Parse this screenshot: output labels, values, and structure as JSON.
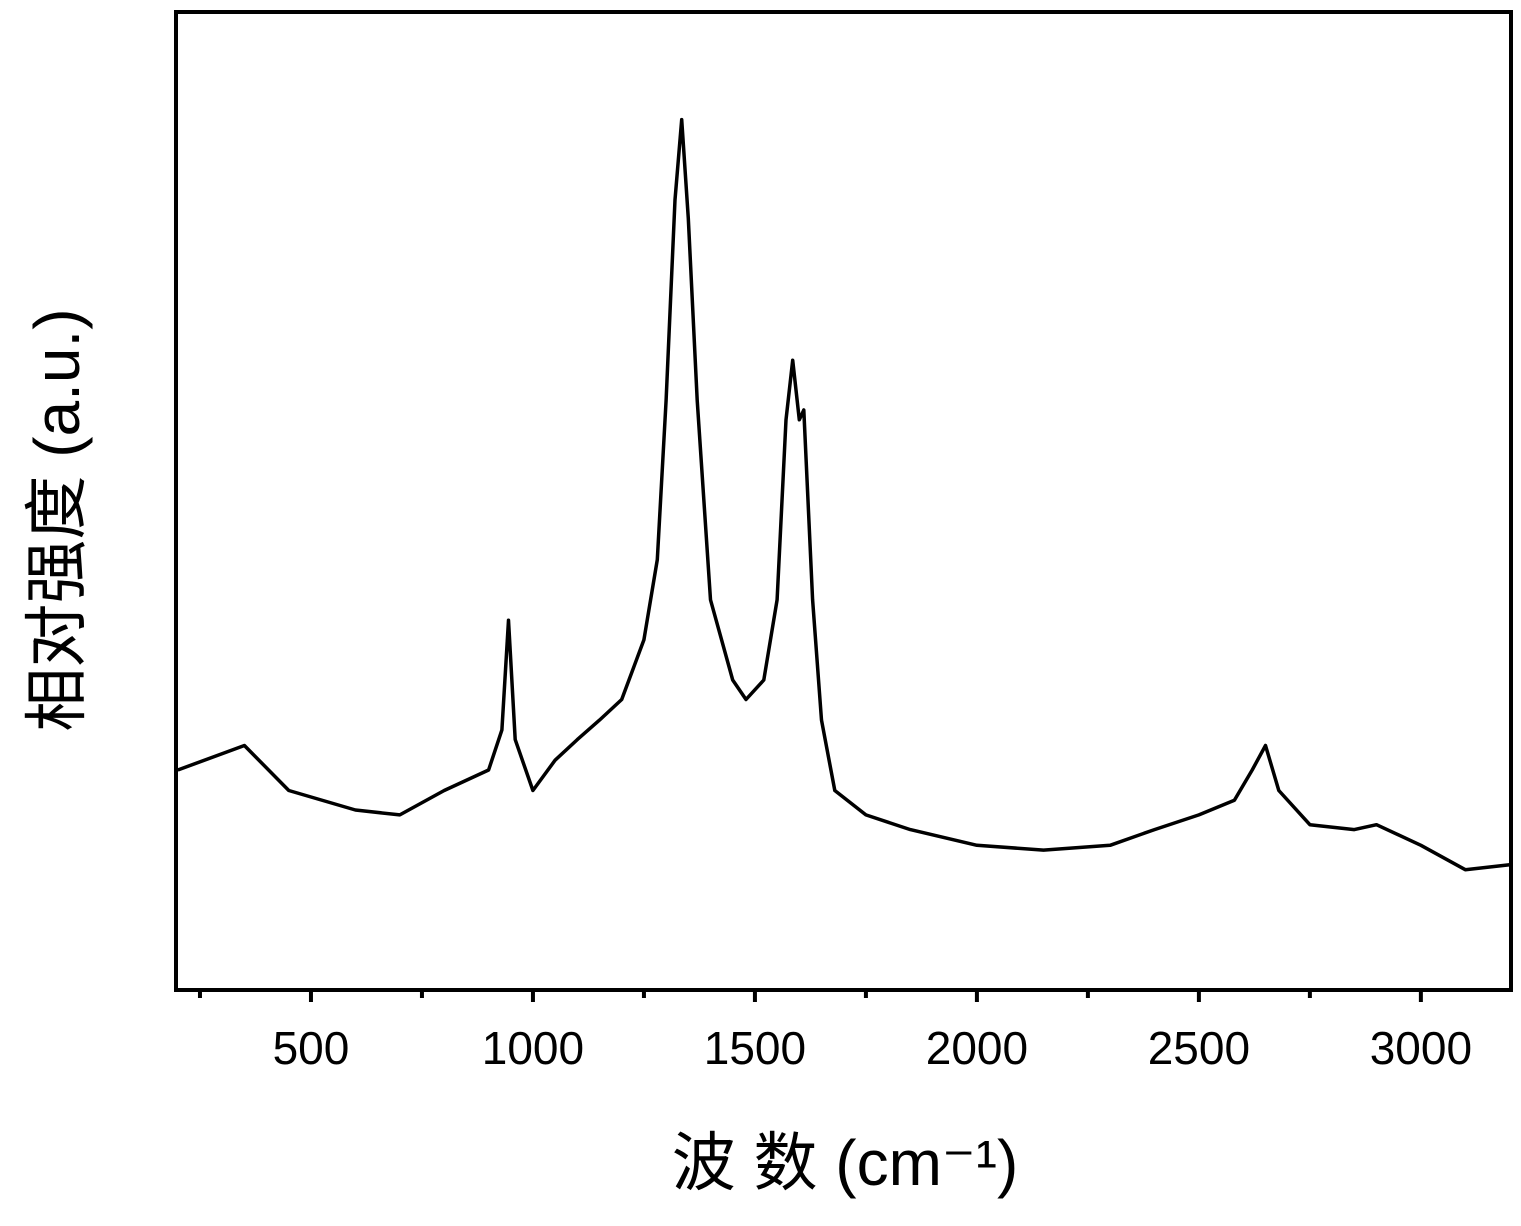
{
  "chart_data": {
    "type": "line",
    "x_label": "波 数 (cm⁻¹)",
    "y_label": "相对强度 (a.u.)",
    "x": [
      200,
      350,
      450,
      600,
      700,
      800,
      900,
      930,
      945,
      960,
      1000,
      1050,
      1100,
      1150,
      1200,
      1250,
      1280,
      1300,
      1320,
      1335,
      1350,
      1370,
      1400,
      1450,
      1480,
      1520,
      1550,
      1570,
      1585,
      1600,
      1610,
      1630,
      1650,
      1680,
      1750,
      1850,
      2000,
      2150,
      2300,
      2400,
      2500,
      2580,
      2620,
      2650,
      2680,
      2750,
      2850,
      2900,
      3000,
      3100,
      3200
    ],
    "series": [
      {
        "color": "#000000",
        "values": [
          22.5,
          25,
          20.4,
          18.4,
          17.9,
          20.4,
          22.5,
          26.6,
          37.8,
          25.6,
          20.4,
          23.5,
          25.6,
          27.6,
          29.7,
          35.8,
          44,
          60.3,
          80.8,
          89,
          78.9,
          60.3,
          39.9,
          31.7,
          29.7,
          31.7,
          39.9,
          58.3,
          64.4,
          58.3,
          59.3,
          39.9,
          27.6,
          20.4,
          17.9,
          16.4,
          14.8,
          14.3,
          14.8,
          16.4,
          17.9,
          19.4,
          22.5,
          25,
          20.4,
          16.9,
          16.4,
          16.9,
          14.8,
          12.3,
          12.8
        ]
      }
    ],
    "xlim": [
      196,
      3203
    ],
    "ylim": [
      0,
      100
    ],
    "xticks": [
      500,
      1000,
      1500,
      2000,
      2500,
      3000
    ],
    "xminorticks": [
      250,
      750,
      1250,
      1750,
      2250,
      2750
    ],
    "grid": false
  }
}
